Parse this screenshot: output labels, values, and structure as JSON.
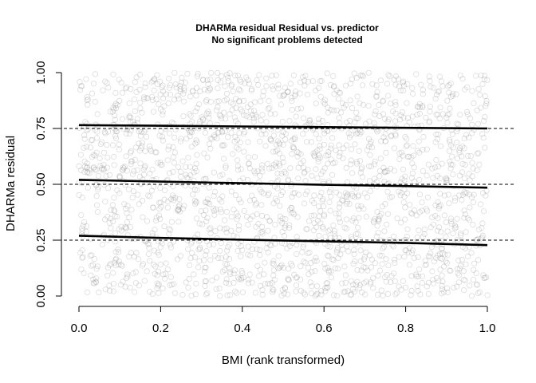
{
  "chart_data": {
    "type": "scatter",
    "title": "DHARMa residual Residual vs. predictor",
    "subtitle": "No significant problems detected",
    "xlabel": "BMI (rank transformed)",
    "ylabel": "DHARMa residual",
    "xlim": [
      0,
      1
    ],
    "ylim": [
      0,
      1
    ],
    "x_ticks": [
      {
        "value": 0.0,
        "label": "0.0"
      },
      {
        "value": 0.2,
        "label": "0.2"
      },
      {
        "value": 0.4,
        "label": "0.4"
      },
      {
        "value": 0.6,
        "label": "0.6"
      },
      {
        "value": 0.8,
        "label": "0.8"
      },
      {
        "value": 1.0,
        "label": "1.0"
      }
    ],
    "y_ticks": [
      {
        "value": 0.0,
        "label": "0.00"
      },
      {
        "value": 0.25,
        "label": "0.25"
      },
      {
        "value": 0.5,
        "label": "0.50"
      },
      {
        "value": 0.75,
        "label": "0.75"
      },
      {
        "value": 1.0,
        "label": "1.00"
      }
    ],
    "reference_lines": [
      0.25,
      0.5,
      0.75
    ],
    "quantile_fits": [
      {
        "quantile": 0.25,
        "x": [
          0.0,
          0.2,
          0.4,
          0.6,
          0.8,
          1.0
        ],
        "y": [
          0.27,
          0.26,
          0.252,
          0.245,
          0.238,
          0.228
        ]
      },
      {
        "quantile": 0.5,
        "x": [
          0.0,
          0.2,
          0.4,
          0.6,
          0.8,
          1.0
        ],
        "y": [
          0.52,
          0.512,
          0.505,
          0.498,
          0.492,
          0.485
        ]
      },
      {
        "quantile": 0.75,
        "x": [
          0.0,
          0.2,
          0.4,
          0.6,
          0.8,
          1.0
        ],
        "y": [
          0.765,
          0.762,
          0.759,
          0.756,
          0.753,
          0.75
        ]
      }
    ],
    "scatter": {
      "n_points": 2000,
      "x_distribution": "uniform",
      "y_distribution": "uniform",
      "marker": "open-circle",
      "color": "#808080"
    },
    "colors": {
      "points": "#808080",
      "fit": "#000000",
      "reference": "#000000"
    },
    "grid": false
  }
}
